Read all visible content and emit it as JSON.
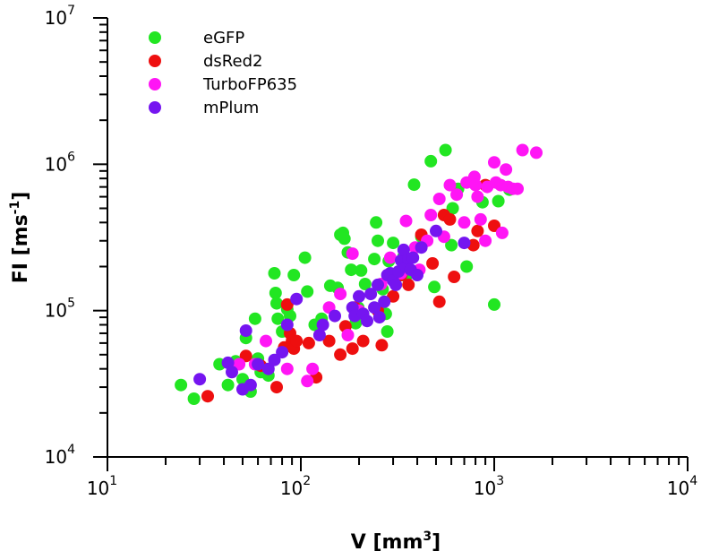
{
  "chart_data": {
    "type": "scatter",
    "title": "",
    "xlabel": "V [mm",
    "xlabel_sup": "3",
    "xlabel_end": "]",
    "ylabel": "FI [ms",
    "ylabel_sup": "-1",
    "ylabel_end": "]",
    "xscale": "log",
    "yscale": "log",
    "xlim": [
      10,
      10000
    ],
    "ylim": [
      10000,
      10000000
    ],
    "grid": false,
    "legend_position": "top-left",
    "x_ticks": [
      {
        "value": 10,
        "base": "10",
        "exp": "1"
      },
      {
        "value": 100,
        "base": "10",
        "exp": "2"
      },
      {
        "value": 1000,
        "base": "10",
        "exp": "3"
      },
      {
        "value": 10000,
        "base": "10",
        "exp": "4"
      }
    ],
    "y_ticks": [
      {
        "value": 10000,
        "base": "10",
        "exp": "4"
      },
      {
        "value": 100000,
        "base": "10",
        "exp": "5"
      },
      {
        "value": 1000000,
        "base": "10",
        "exp": "6"
      },
      {
        "value": 10000000,
        "base": "10",
        "exp": "7"
      }
    ],
    "series": [
      {
        "name": "eGFP",
        "color": "#22e622",
        "points": [
          [
            24,
            31000
          ],
          [
            28,
            25000
          ],
          [
            38,
            43000
          ],
          [
            42,
            31000
          ],
          [
            46,
            45000
          ],
          [
            50,
            34000
          ],
          [
            52,
            65000
          ],
          [
            55,
            28000
          ],
          [
            58,
            88000
          ],
          [
            60,
            47000
          ],
          [
            62,
            38000
          ],
          [
            68,
            36000
          ],
          [
            73,
            180000
          ],
          [
            74,
            132000
          ],
          [
            75,
            112000
          ],
          [
            76,
            88000
          ],
          [
            80,
            72000
          ],
          [
            85,
            102000
          ],
          [
            88,
            92000
          ],
          [
            92,
            175000
          ],
          [
            105,
            230000
          ],
          [
            108,
            135000
          ],
          [
            118,
            80000
          ],
          [
            128,
            88000
          ],
          [
            142,
            148000
          ],
          [
            155,
            143000
          ],
          [
            160,
            330000
          ],
          [
            165,
            340000
          ],
          [
            168,
            310000
          ],
          [
            175,
            250000
          ],
          [
            182,
            190000
          ],
          [
            192,
            82000
          ],
          [
            198,
            105000
          ],
          [
            205,
            188000
          ],
          [
            215,
            152000
          ],
          [
            240,
            225000
          ],
          [
            245,
            400000
          ],
          [
            250,
            300000
          ],
          [
            265,
            140000
          ],
          [
            275,
            95000
          ],
          [
            280,
            72000
          ],
          [
            285,
            218000
          ],
          [
            300,
            290000
          ],
          [
            340,
            235000
          ],
          [
            350,
            172000
          ],
          [
            385,
            725000
          ],
          [
            420,
            320000
          ],
          [
            470,
            1050000
          ],
          [
            490,
            145000
          ],
          [
            560,
            1250000
          ],
          [
            600,
            280000
          ],
          [
            610,
            500000
          ],
          [
            650,
            680000
          ],
          [
            720,
            200000
          ],
          [
            870,
            550000
          ],
          [
            1000,
            110000
          ],
          [
            1050,
            560000
          ],
          [
            1200,
            670000
          ]
        ]
      },
      {
        "name": "dsRed2",
        "color": "#ee0f0f",
        "points": [
          [
            33,
            26000
          ],
          [
            52,
            49000
          ],
          [
            62,
            42000
          ],
          [
            75,
            30000
          ],
          [
            82,
            56000
          ],
          [
            85,
            110000
          ],
          [
            88,
            70000
          ],
          [
            90,
            62000
          ],
          [
            92,
            55000
          ],
          [
            95,
            62000
          ],
          [
            110,
            60000
          ],
          [
            120,
            35000
          ],
          [
            140,
            62000
          ],
          [
            160,
            50000
          ],
          [
            170,
            78000
          ],
          [
            185,
            55000
          ],
          [
            190,
            105000
          ],
          [
            210,
            62000
          ],
          [
            250,
            100000
          ],
          [
            262,
            58000
          ],
          [
            300,
            125000
          ],
          [
            330,
            175000
          ],
          [
            360,
            150000
          ],
          [
            420,
            330000
          ],
          [
            480,
            210000
          ],
          [
            520,
            115000
          ],
          [
            550,
            450000
          ],
          [
            590,
            420000
          ],
          [
            620,
            170000
          ],
          [
            780,
            280000
          ],
          [
            820,
            350000
          ],
          [
            900,
            720000
          ],
          [
            1000,
            380000
          ]
        ]
      },
      {
        "name": "TurboFP635",
        "color": "#ff15f5",
        "points": [
          [
            48,
            43000
          ],
          [
            58,
            43000
          ],
          [
            66,
            62000
          ],
          [
            85,
            40000
          ],
          [
            108,
            33000
          ],
          [
            115,
            40000
          ],
          [
            140,
            105000
          ],
          [
            160,
            130000
          ],
          [
            175,
            68000
          ],
          [
            185,
            245000
          ],
          [
            200,
            100000
          ],
          [
            260,
            152000
          ],
          [
            290,
            230000
          ],
          [
            330,
            180000
          ],
          [
            350,
            410000
          ],
          [
            390,
            270000
          ],
          [
            410,
            190000
          ],
          [
            450,
            300000
          ],
          [
            470,
            450000
          ],
          [
            520,
            580000
          ],
          [
            550,
            320000
          ],
          [
            590,
            720000
          ],
          [
            640,
            620000
          ],
          [
            700,
            400000
          ],
          [
            720,
            750000
          ],
          [
            790,
            820000
          ],
          [
            800,
            720000
          ],
          [
            820,
            600000
          ],
          [
            850,
            420000
          ],
          [
            900,
            300000
          ],
          [
            920,
            700000
          ],
          [
            1000,
            1030000
          ],
          [
            1020,
            750000
          ],
          [
            1080,
            720000
          ],
          [
            1100,
            340000
          ],
          [
            1150,
            920000
          ],
          [
            1180,
            700000
          ],
          [
            1250,
            680000
          ],
          [
            1320,
            680000
          ],
          [
            1400,
            1250000
          ],
          [
            1650,
            1200000
          ]
        ]
      },
      {
        "name": "mPlum",
        "color": "#7515f0",
        "points": [
          [
            30,
            34000
          ],
          [
            42,
            44000
          ],
          [
            44,
            38000
          ],
          [
            50,
            29000
          ],
          [
            52,
            73000
          ],
          [
            55,
            31000
          ],
          [
            60,
            43000
          ],
          [
            68,
            40000
          ],
          [
            73,
            46000
          ],
          [
            80,
            52000
          ],
          [
            85,
            80000
          ],
          [
            95,
            120000
          ],
          [
            125,
            68000
          ],
          [
            130,
            80000
          ],
          [
            150,
            92000
          ],
          [
            185,
            105000
          ],
          [
            190,
            92000
          ],
          [
            200,
            125000
          ],
          [
            210,
            95000
          ],
          [
            220,
            85000
          ],
          [
            230,
            130000
          ],
          [
            240,
            105000
          ],
          [
            250,
            150000
          ],
          [
            255,
            90000
          ],
          [
            270,
            115000
          ],
          [
            280,
            175000
          ],
          [
            290,
            180000
          ],
          [
            300,
            160000
          ],
          [
            310,
            150000
          ],
          [
            320,
            185000
          ],
          [
            330,
            220000
          ],
          [
            340,
            260000
          ],
          [
            350,
            200000
          ],
          [
            360,
            225000
          ],
          [
            370,
            190000
          ],
          [
            380,
            230000
          ],
          [
            400,
            175000
          ],
          [
            420,
            270000
          ],
          [
            500,
            350000
          ],
          [
            700,
            290000
          ]
        ]
      }
    ]
  }
}
